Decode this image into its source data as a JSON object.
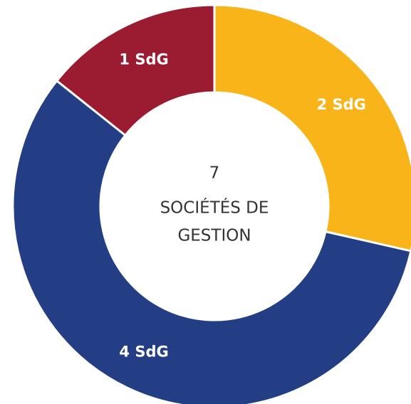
{
  "chart_data": {
    "type": "donut",
    "categories": [
      "2 SdG",
      "4 SdG",
      "1 SdG"
    ],
    "values": [
      2,
      4,
      1
    ],
    "colors": [
      "#f8b418",
      "#233e85",
      "#9b1b31"
    ],
    "center_value": 7,
    "center_lines": [
      "SOCIÉTÉS DE",
      "GESTION"
    ]
  }
}
